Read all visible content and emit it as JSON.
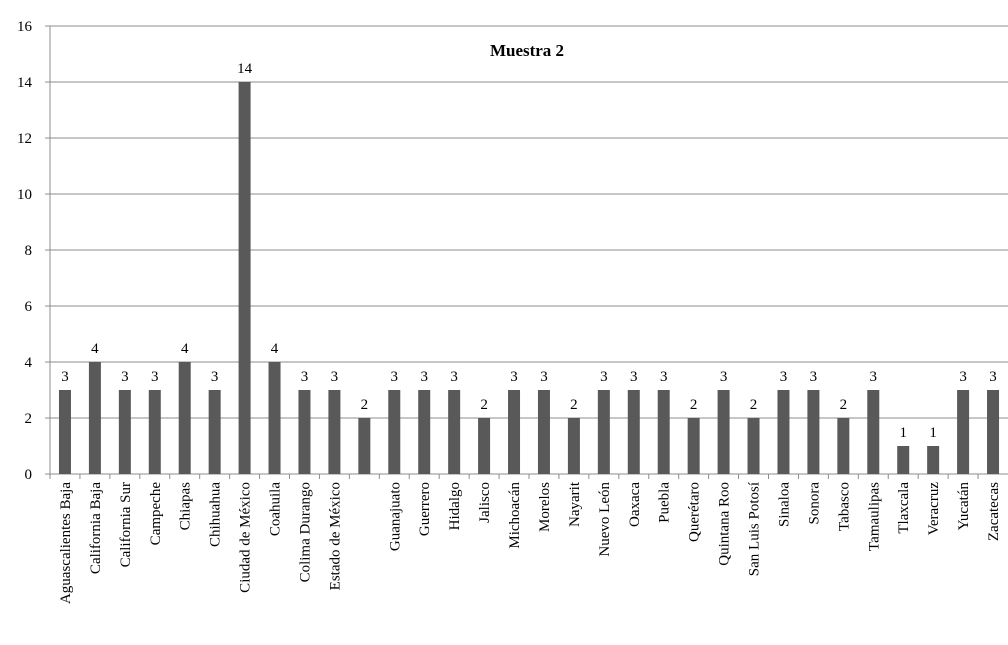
{
  "chart_data": {
    "type": "bar",
    "title": "Muestra 2",
    "categories": [
      "Aguascalientes Baja",
      "California Baja",
      "California Sur",
      "Campeche",
      "Chiapas",
      "Chihuahua",
      "Ciudad de México",
      "Coahuila",
      "Colima Durango",
      "Estado de México",
      null,
      "Guanajuato",
      "Guerrero",
      "Hidalgo",
      "Jalisco",
      "Michoacán",
      "Morelos",
      "Nayarit",
      "Nuevo León",
      "Oaxaca",
      "Puebla",
      "Querétaro",
      "Quintana Roo",
      "San Luis Potosí",
      "Sinaloa",
      "Sonora",
      "Tabasco",
      "Tamaulipas",
      "Tlaxcala",
      "Veracruz",
      "Yucatán",
      "Zacatecas"
    ],
    "values": [
      3,
      4,
      3,
      3,
      4,
      3,
      14,
      4,
      3,
      3,
      2,
      3,
      3,
      3,
      2,
      3,
      3,
      2,
      3,
      3,
      3,
      2,
      3,
      2,
      3,
      3,
      2,
      3,
      1,
      1,
      3,
      3
    ],
    "color": "#595959",
    "ylim": [
      0,
      16
    ],
    "yticks": [
      0,
      2,
      4,
      6,
      8,
      10,
      12,
      14,
      16
    ],
    "grid": true
  }
}
